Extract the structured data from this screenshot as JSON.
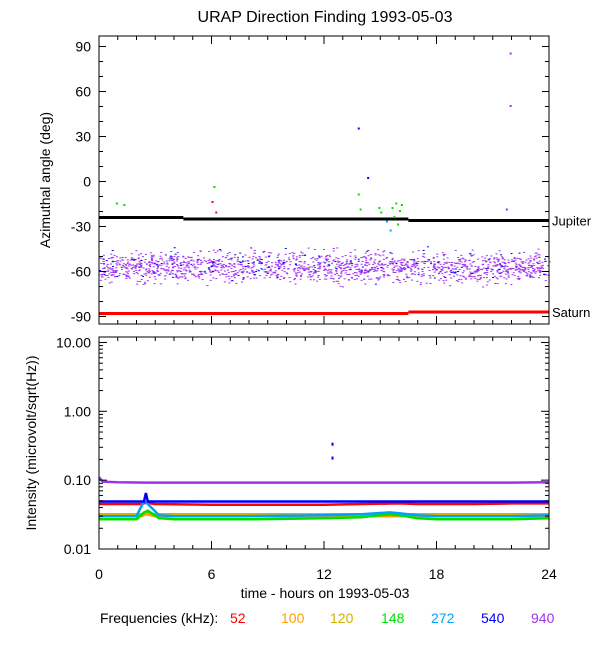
{
  "chart_data": [
    {
      "type": "scatter",
      "title": "URAP Direction Finding  1993-05-03",
      "ylabel": "Azimuthal angle (deg)",
      "xlim": [
        0,
        24
      ],
      "ylim": [
        -95,
        97
      ],
      "yticks": [
        "90",
        "60",
        "30",
        "0",
        "-30",
        "-60",
        "-90"
      ],
      "yticks_values": [
        90,
        60,
        30,
        0,
        -30,
        -60,
        -90
      ],
      "reference_lines": [
        {
          "name": "Jupiter",
          "color": "#000000",
          "segments": [
            [
              0,
              4.5,
              -24
            ],
            [
              4.5,
              16.5,
              -25
            ],
            [
              16.5,
              24,
              -26
            ]
          ]
        },
        {
          "name": "Saturn",
          "color": "#ff0000",
          "segments": [
            [
              0,
              16.5,
              -88
            ],
            [
              16.5,
              24,
              -87
            ]
          ]
        }
      ],
      "series": [
        {
          "color": "#a030f0",
          "band": [
            -70,
            -45
          ],
          "center": -57
        },
        {
          "color": "#0000ff",
          "band": [
            -70,
            -45
          ],
          "center": -55
        }
      ],
      "outliers": [
        {
          "x": 0.9,
          "y": -14,
          "color": "#00e000"
        },
        {
          "x": 1.3,
          "y": -15,
          "color": "#00e000"
        },
        {
          "x": 6.1,
          "y": -3,
          "color": "#00e000"
        },
        {
          "x": 6.0,
          "y": -13,
          "color": "#ff0000"
        },
        {
          "x": 6.2,
          "y": -20,
          "color": "#ff0000"
        },
        {
          "x": 13.8,
          "y": -8,
          "color": "#00e000"
        },
        {
          "x": 13.9,
          "y": -18,
          "color": "#00e000"
        },
        {
          "x": 14.3,
          "y": 3,
          "color": "#0000ff"
        },
        {
          "x": 14.9,
          "y": -17,
          "color": "#00e000"
        },
        {
          "x": 15.0,
          "y": -20,
          "color": "#00e000"
        },
        {
          "x": 15.6,
          "y": -17,
          "color": "#00e000"
        },
        {
          "x": 15.7,
          "y": -23,
          "color": "#00e000"
        },
        {
          "x": 15.8,
          "y": -14,
          "color": "#00e000"
        },
        {
          "x": 15.9,
          "y": -28,
          "color": "#00e000"
        },
        {
          "x": 16.0,
          "y": -19,
          "color": "#00e000"
        },
        {
          "x": 16.1,
          "y": -15,
          "color": "#00e000"
        },
        {
          "x": 15.5,
          "y": -32,
          "color": "#00a0ff"
        },
        {
          "x": 15.3,
          "y": -26,
          "color": "#00a0ff"
        },
        {
          "x": 13.8,
          "y": 36,
          "color": "#0000ff"
        },
        {
          "x": 21.9,
          "y": 86,
          "color": "#a030f0"
        },
        {
          "x": 21.9,
          "y": 51,
          "color": "#a030f0"
        },
        {
          "x": 21.7,
          "y": -18,
          "color": "#a030f0"
        }
      ]
    },
    {
      "type": "line",
      "xlabel": "time - hours on 1993-05-03",
      "ylabel": "Intensity (microvolt/sqrt(Hz))",
      "yscale": "log",
      "xlim": [
        0,
        24
      ],
      "ylim": [
        0.01,
        12
      ],
      "yticks": [
        "10.00",
        "1.00",
        "0.10",
        "0.01"
      ],
      "yticks_values": [
        10,
        1,
        0.1,
        0.01
      ],
      "xticks": [
        "0",
        "6",
        "12",
        "18",
        "24"
      ],
      "xticks_values": [
        0,
        6,
        12,
        18,
        24
      ],
      "series": [
        {
          "name": "52",
          "color": "#ff0000",
          "x": [
            0,
            2.3,
            2.5,
            3.0,
            6,
            12,
            14,
            16,
            17,
            20,
            22,
            24
          ],
          "y": [
            0.045,
            0.045,
            0.047,
            0.045,
            0.044,
            0.044,
            0.045,
            0.046,
            0.045,
            0.045,
            0.046,
            0.046
          ]
        },
        {
          "name": "100",
          "color": "#ffa000",
          "x": [
            0,
            2.3,
            2.5,
            3.0,
            6,
            12,
            16,
            20,
            24
          ],
          "y": [
            0.03,
            0.03,
            0.032,
            0.03,
            0.03,
            0.03,
            0.03,
            0.03,
            0.03
          ]
        },
        {
          "name": "120",
          "color": "#d0b000",
          "x": [
            0,
            2.3,
            2.5,
            3.0,
            6,
            12,
            16,
            20,
            24
          ],
          "y": [
            0.032,
            0.032,
            0.034,
            0.032,
            0.032,
            0.032,
            0.032,
            0.032,
            0.032
          ]
        },
        {
          "name": "148",
          "color": "#00e000",
          "x": [
            0,
            2.0,
            2.4,
            2.6,
            3.2,
            4.0,
            8,
            12,
            14,
            15.5,
            16,
            17,
            18,
            22,
            24
          ],
          "y": [
            0.027,
            0.027,
            0.034,
            0.036,
            0.028,
            0.027,
            0.027,
            0.028,
            0.029,
            0.032,
            0.031,
            0.028,
            0.027,
            0.027,
            0.028
          ]
        },
        {
          "name": "272",
          "color": "#00a0ff",
          "x": [
            0,
            2.0,
            2.4,
            2.6,
            3.2,
            4.0,
            8,
            12,
            14,
            15.5,
            16,
            17,
            18,
            22,
            24
          ],
          "y": [
            0.03,
            0.03,
            0.05,
            0.045,
            0.031,
            0.03,
            0.03,
            0.031,
            0.032,
            0.034,
            0.033,
            0.031,
            0.03,
            0.03,
            0.031
          ]
        },
        {
          "name": "540",
          "color": "#0000ff",
          "x": [
            0,
            2.4,
            2.5,
            2.6,
            24
          ],
          "y": [
            0.049,
            0.049,
            0.065,
            0.049,
            0.049
          ]
        },
        {
          "name": "940",
          "color": "#a030f0",
          "x": [
            0,
            0.2,
            1.0,
            2.5,
            6,
            12,
            18,
            22,
            24
          ],
          "y": [
            0.11,
            0.095,
            0.093,
            0.092,
            0.092,
            0.092,
            0.092,
            0.092,
            0.093
          ]
        }
      ],
      "outliers": [
        {
          "x": 12.4,
          "y": 0.35,
          "color": "#0000ff"
        },
        {
          "x": 12.4,
          "y": 0.22,
          "color": "#0000ff"
        }
      ]
    }
  ],
  "legend": {
    "label": "Frequencies (kHz):",
    "items": [
      {
        "text": "52",
        "color": "#ff0000"
      },
      {
        "text": "100",
        "color": "#ffa000"
      },
      {
        "text": "120",
        "color": "#d0b000"
      },
      {
        "text": "148",
        "color": "#00e000"
      },
      {
        "text": "272",
        "color": "#00a0ff"
      },
      {
        "text": "540",
        "color": "#0000ff"
      },
      {
        "text": "940",
        "color": "#a030f0"
      }
    ]
  }
}
